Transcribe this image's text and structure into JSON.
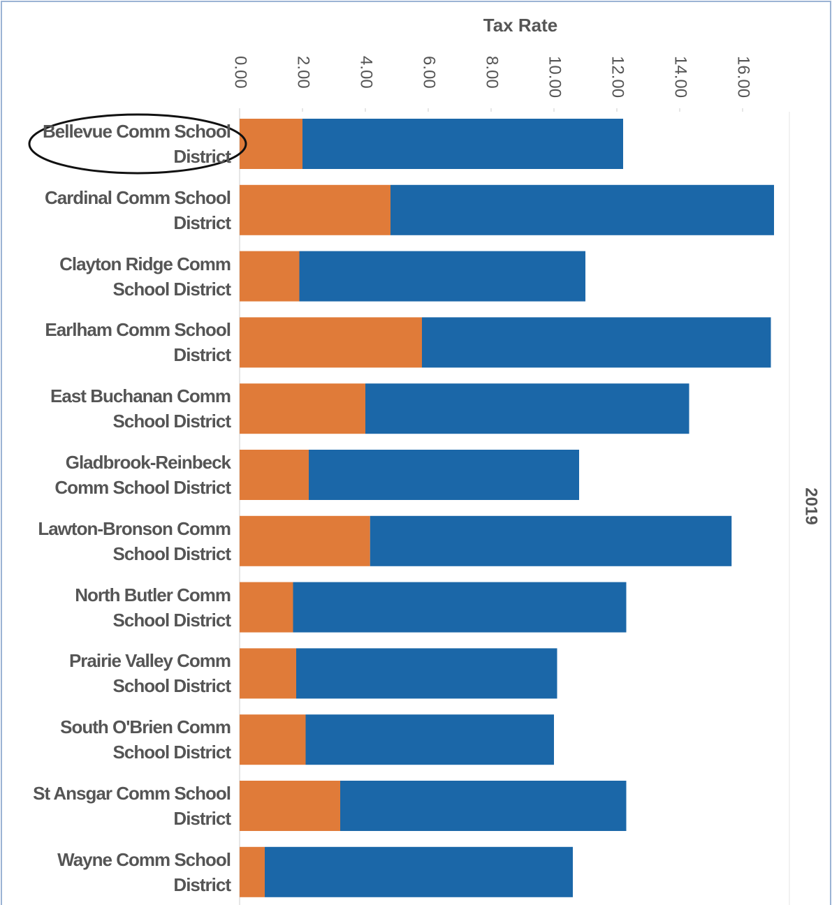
{
  "chart_data": {
    "type": "bar",
    "orientation": "horizontal",
    "stacked": true,
    "title": "Tax Rate",
    "facet_label": "2019",
    "categories": [
      "Bellevue Comm School District",
      "Cardinal Comm School District",
      "Clayton Ridge Comm School District",
      "Earlham Comm School District",
      "East Buchanan Comm School District",
      "Gladbrook-Reinbeck Comm School District",
      "Lawton-Bronson Comm School District",
      "North Butler Comm School District",
      "Prairie Valley Comm School District",
      "South O'Brien  Comm School District",
      "St Ansgar Comm School District",
      "Wayne Comm School District"
    ],
    "series": [
      {
        "color": "#e07b39",
        "values": [
          2.0,
          4.8,
          1.9,
          5.8,
          4.0,
          2.2,
          4.15,
          1.7,
          1.8,
          2.1,
          3.2,
          0.8
        ]
      },
      {
        "color": "#1b67a8",
        "values": [
          10.2,
          12.2,
          9.1,
          11.1,
          10.3,
          8.6,
          11.5,
          10.6,
          8.3,
          7.9,
          9.1,
          9.8
        ]
      }
    ],
    "xlim": [
      0,
      17.5
    ],
    "xticks": [
      {
        "value": 0,
        "label": "0.00"
      },
      {
        "value": 2,
        "label": "2.00"
      },
      {
        "value": 4,
        "label": "4.00"
      },
      {
        "value": 6,
        "label": "6.00"
      },
      {
        "value": 8,
        "label": "8.00"
      },
      {
        "value": 10,
        "label": "10.00"
      },
      {
        "value": 12,
        "label": "12.00"
      },
      {
        "value": 14,
        "label": "14.00"
      },
      {
        "value": 16,
        "label": "16.00"
      }
    ],
    "grid": false
  }
}
